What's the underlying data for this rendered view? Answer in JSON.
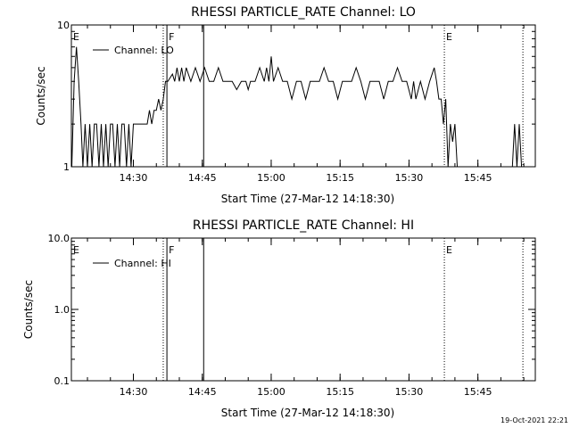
{
  "chart_data": [
    {
      "type": "line",
      "title": "RHESSI PARTICLE_RATE Channel: LO",
      "xlabel": "Start Time (27-Mar-12 14:18:30)",
      "ylabel": "Counts/sec",
      "yscale": "log",
      "ylim": [
        1,
        10
      ],
      "xlim_min": [
        -3.0,
        76.5
      ],
      "x_ticks": [
        {
          "v": 10.5,
          "label": "14:30"
        },
        {
          "v": 25.5,
          "label": "14:45"
        },
        {
          "v": 40.5,
          "label": "15:00"
        },
        {
          "v": 55.5,
          "label": "15:15"
        },
        {
          "v": 70.5,
          "label": "15:30"
        },
        {
          "v": 85.5,
          "label": "15:45"
        }
      ],
      "y_ticks": [
        {
          "v": 1,
          "label": "1"
        },
        {
          "v": 10,
          "label": "10"
        }
      ],
      "legend": {
        "label": "Channel: LO",
        "position": "top-left"
      },
      "markers": [
        {
          "x": -3.0,
          "label": "E",
          "style": "dotted"
        },
        {
          "x": 17.0,
          "label": "",
          "style": "dotted"
        },
        {
          "x": 17.8,
          "label": "F",
          "style": "solid"
        },
        {
          "x": 25.8,
          "label": "",
          "style": "solid"
        },
        {
          "x": 78.2,
          "label": "E",
          "style": "dotted"
        },
        {
          "x": 95.3,
          "label": "",
          "style": "dotted"
        }
      ],
      "series": [
        {
          "name": "Channel: LO",
          "x": [
            -2.9,
            -2.4,
            -1.9,
            -1.4,
            -0.9,
            -0.5,
            0.0,
            0.5,
            1.0,
            1.5,
            2.0,
            2.5,
            3.0,
            3.5,
            4.0,
            4.5,
            5.0,
            5.5,
            6.0,
            6.5,
            7.0,
            7.5,
            8.0,
            8.5,
            9.0,
            9.5,
            10.0,
            10.5,
            11.0,
            11.5,
            12.0,
            12.5,
            13.0,
            13.5,
            14.0,
            14.5,
            15.0,
            15.5,
            16.0,
            16.5,
            17.0,
            17.5,
            18.0,
            19.0,
            19.5,
            20.0,
            20.5,
            21.0,
            21.5,
            22.0,
            23.0,
            24.0,
            25.0,
            26.0,
            27.0,
            28.0,
            29.0,
            30.0,
            31.0,
            32.0,
            33.0,
            34.0,
            35.0,
            35.5,
            36.0,
            36.5,
            37.0,
            38.0,
            39.0,
            39.5,
            40.0,
            40.5,
            41.0,
            42.0,
            43.0,
            44.0,
            45.0,
            46.0,
            47.0,
            48.0,
            49.0,
            50.0,
            51.0,
            52.0,
            53.0,
            54.0,
            55.0,
            56.0,
            57.0,
            58.0,
            59.0,
            60.0,
            61.0,
            62.0,
            63.0,
            64.0,
            65.0,
            66.0,
            67.0,
            68.0,
            69.0,
            70.0,
            71.0,
            71.5,
            72.0,
            73.0,
            74.0,
            75.0,
            76.0,
            76.5,
            77.0,
            77.5,
            78.0,
            78.5,
            79.0,
            79.5,
            80.0,
            80.5,
            81.0,
            81.5,
            82.0,
            93.0,
            93.5,
            94.0,
            94.5,
            95.0
          ],
          "y": [
            1.0,
            4.0,
            7.0,
            4.0,
            2.0,
            1.0,
            2.0,
            1.0,
            2.0,
            1.0,
            2.0,
            2.0,
            1.0,
            2.0,
            1.0,
            2.0,
            1.0,
            2.0,
            2.0,
            1.0,
            2.0,
            1.0,
            2.0,
            2.0,
            1.0,
            2.0,
            1.0,
            2.0,
            2.0,
            2.0,
            2.0,
            2.0,
            2.0,
            2.0,
            2.5,
            2.0,
            2.5,
            2.5,
            3.0,
            2.5,
            3.0,
            4.0,
            4.0,
            4.5,
            4.0,
            5.0,
            4.0,
            5.0,
            4.0,
            5.0,
            4.0,
            5.0,
            4.0,
            5.0,
            4.0,
            4.0,
            5.0,
            4.0,
            4.0,
            4.0,
            3.5,
            4.0,
            4.0,
            3.5,
            4.0,
            4.0,
            4.0,
            5.0,
            4.0,
            5.0,
            4.0,
            6.0,
            4.0,
            5.0,
            4.0,
            4.0,
            3.0,
            4.0,
            4.0,
            3.0,
            4.0,
            4.0,
            4.0,
            5.0,
            4.0,
            4.0,
            3.0,
            4.0,
            4.0,
            4.0,
            5.0,
            4.0,
            3.0,
            4.0,
            4.0,
            4.0,
            3.0,
            4.0,
            4.0,
            5.0,
            4.0,
            4.0,
            3.0,
            4.0,
            3.0,
            4.0,
            3.0,
            4.0,
            5.0,
            4.0,
            3.0,
            3.0,
            2.0,
            3.0,
            1.0,
            2.0,
            1.5,
            2.0,
            1.0,
            1.0,
            1.0,
            1.0,
            2.0,
            1.0,
            2.0,
            1.0
          ]
        }
      ]
    },
    {
      "type": "line",
      "title": "RHESSI PARTICLE_RATE Channel: HI",
      "xlabel": "Start Time (27-Mar-12 14:18:30)",
      "ylabel": "Counts/sec",
      "yscale": "log",
      "ylim": [
        0.1,
        10
      ],
      "x_ticks": [
        {
          "v": 10.5,
          "label": "14:30"
        },
        {
          "v": 25.5,
          "label": "14:45"
        },
        {
          "v": 40.5,
          "label": "15:00"
        },
        {
          "v": 55.5,
          "label": "15:15"
        },
        {
          "v": 70.5,
          "label": "15:30"
        },
        {
          "v": 85.5,
          "label": "15:45"
        }
      ],
      "y_ticks": [
        {
          "v": 0.1,
          "label": "0.1"
        },
        {
          "v": 1.0,
          "label": "1.0"
        },
        {
          "v": 10.0,
          "label": "10.0"
        }
      ],
      "legend": {
        "label": "Channel: HI",
        "position": "top-left"
      },
      "markers": [
        {
          "x": -3.0,
          "label": "E",
          "style": "dotted"
        },
        {
          "x": 17.0,
          "label": "",
          "style": "dotted"
        },
        {
          "x": 17.8,
          "label": "F",
          "style": "solid"
        },
        {
          "x": 25.8,
          "label": "",
          "style": "solid"
        },
        {
          "x": 78.2,
          "label": "E",
          "style": "dotted"
        },
        {
          "x": 95.3,
          "label": "",
          "style": "dotted"
        }
      ],
      "series": []
    }
  ],
  "footer": {
    "timestamp": "19-Oct-2021 22:21"
  }
}
